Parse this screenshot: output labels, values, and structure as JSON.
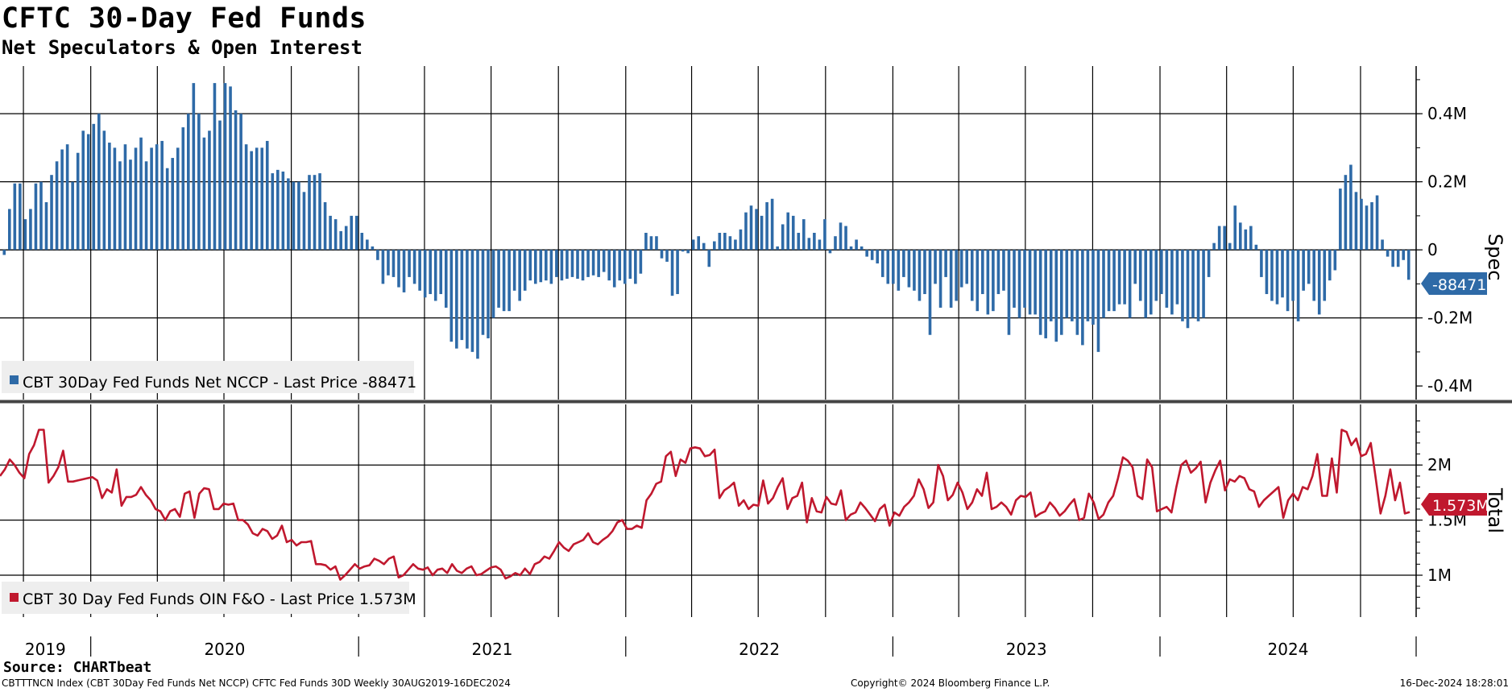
{
  "header": {
    "title": "CFTC 30-Day Fed Funds",
    "subtitle": "Net Speculators & Open Interest"
  },
  "footer": {
    "source": "Source: CHARTbeat",
    "index_line": "CBTTTNCN Index (CBT 30Day Fed Funds Net NCCP) CFTC Fed Funds 30D  Weekly 30AUG2019-16DEC2024",
    "copyright": "Copyright© 2024 Bloomberg Finance L.P.",
    "timestamp": "16-Dec-2024 18:28:01"
  },
  "colors": {
    "spec": "#2e6aa7",
    "total": "#c0182e",
    "grid": "#000000"
  },
  "chart_data": [
    {
      "type": "bar",
      "frequency": "weekly",
      "date_range": [
        "2019-08-30",
        "2024-12-16"
      ],
      "ylabel": "Spec",
      "yticks": [
        0.4,
        0.2,
        0,
        -0.2,
        -0.4
      ],
      "ytick_labels": [
        "0.4M",
        "0.2M",
        "0",
        "-0.2M",
        "-0.4M"
      ],
      "ylim": [
        -0.44,
        0.54
      ],
      "grid": true,
      "legend": "bottom-left",
      "series": [
        {
          "name": "CBT 30Day Fed Funds Net NCCP",
          "legend_label": "CBT 30Day Fed Funds Net NCCP - Last Price -88471",
          "last_tag": "-88471",
          "values": [
            -0.015,
            0.12,
            0.195,
            0.195,
            0.09,
            0.12,
            0.195,
            0.2,
            0.14,
            0.22,
            0.26,
            0.295,
            0.31,
            0.2,
            0.285,
            0.35,
            0.34,
            0.37,
            0.4,
            0.35,
            0.315,
            0.3,
            0.26,
            0.31,
            0.265,
            0.3,
            0.33,
            0.26,
            0.3,
            0.31,
            0.32,
            0.24,
            0.27,
            0.3,
            0.36,
            0.4,
            0.49,
            0.4,
            0.33,
            0.35,
            0.49,
            0.38,
            0.49,
            0.48,
            0.41,
            0.4,
            0.31,
            0.29,
            0.3,
            0.3,
            0.32,
            0.225,
            0.235,
            0.23,
            0.21,
            0.2,
            0.2,
            0.17,
            0.22,
            0.22,
            0.225,
            0.14,
            0.1,
            0.09,
            0.055,
            0.07,
            0.1,
            0.1,
            0.05,
            0.03,
            0.01,
            -0.03,
            -0.1,
            -0.075,
            -0.08,
            -0.11,
            -0.125,
            -0.08,
            -0.1,
            -0.12,
            -0.14,
            -0.13,
            -0.15,
            -0.13,
            -0.17,
            -0.27,
            -0.29,
            -0.265,
            -0.29,
            -0.3,
            -0.32,
            -0.25,
            -0.26,
            -0.2,
            -0.17,
            -0.18,
            -0.18,
            -0.12,
            -0.15,
            -0.12,
            -0.09,
            -0.1,
            -0.095,
            -0.09,
            -0.1,
            -0.08,
            -0.09,
            -0.085,
            -0.08,
            -0.085,
            -0.09,
            -0.08,
            -0.075,
            -0.08,
            -0.065,
            -0.09,
            -0.11,
            -0.09,
            -0.1,
            -0.085,
            -0.1,
            -0.07,
            0.05,
            0.04,
            0.04,
            -0.025,
            -0.035,
            -0.135,
            -0.13,
            -0.005,
            -0.01,
            0.03,
            0.04,
            0.02,
            -0.05,
            0.025,
            0.05,
            0.05,
            0.04,
            0.03,
            0.06,
            0.11,
            0.13,
            0.12,
            0.1,
            0.14,
            0.15,
            0.01,
            0.075,
            0.11,
            0.1,
            0.05,
            0.09,
            0.035,
            0.05,
            0.03,
            0.09,
            -0.01,
            0.04,
            0.08,
            0.07,
            0.01,
            0.03,
            0.01,
            -0.02,
            -0.03,
            -0.04,
            -0.08,
            -0.1,
            -0.1,
            -0.12,
            -0.08,
            -0.11,
            -0.12,
            -0.15,
            -0.13,
            -0.25,
            -0.1,
            -0.17,
            -0.08,
            -0.17,
            -0.15,
            -0.11,
            -0.1,
            -0.15,
            -0.18,
            -0.13,
            -0.19,
            -0.18,
            -0.13,
            -0.12,
            -0.25,
            -0.17,
            -0.2,
            -0.17,
            -0.19,
            -0.19,
            -0.25,
            -0.26,
            -0.21,
            -0.27,
            -0.25,
            -0.2,
            -0.21,
            -0.25,
            -0.28,
            -0.21,
            -0.22,
            -0.3,
            -0.2,
            -0.18,
            -0.18,
            -0.16,
            -0.16,
            -0.2,
            -0.1,
            -0.15,
            -0.2,
            -0.19,
            -0.15,
            -0.13,
            -0.17,
            -0.19,
            -0.16,
            -0.21,
            -0.23,
            -0.2,
            -0.21,
            -0.2,
            -0.08,
            0.02,
            0.07,
            0.07,
            0.02,
            0.13,
            0.08,
            0.06,
            0.07,
            0.015,
            -0.08,
            -0.13,
            -0.15,
            -0.16,
            -0.14,
            -0.18,
            -0.15,
            -0.21,
            -0.12,
            -0.1,
            -0.15,
            -0.19,
            -0.15,
            -0.09,
            -0.06,
            0.18,
            0.22,
            0.25,
            0.17,
            0.15,
            0.13,
            0.14,
            0.16,
            0.03,
            -0.02,
            -0.05,
            -0.05,
            -0.03,
            -0.088
          ]
        }
      ]
    },
    {
      "type": "line",
      "frequency": "weekly",
      "date_range": [
        "2019-08-30",
        "2024-12-16"
      ],
      "ylabel": "Total",
      "yticks": [
        2.0,
        1.5,
        1.0
      ],
      "ytick_labels": [
        "2M",
        "1.5M",
        "1M"
      ],
      "ylim": [
        0.62,
        2.55
      ],
      "grid": true,
      "legend": "bottom-left",
      "series": [
        {
          "name": "CBT 30 Day Fed Funds OIN F&O",
          "legend_label": "CBT 30 Day Fed Funds OIN F&O - Last Price 1.573M",
          "last_tag": "1.573M",
          "values": [
            1.9,
            1.96,
            2.05,
            2.0,
            1.93,
            1.88,
            2.1,
            2.18,
            2.32,
            2.32,
            1.84,
            1.9,
            1.98,
            2.13,
            1.85,
            1.85,
            1.86,
            1.87,
            1.88,
            1.89,
            1.86,
            1.7,
            1.78,
            1.75,
            1.96,
            1.63,
            1.71,
            1.71,
            1.73,
            1.8,
            1.73,
            1.68,
            1.6,
            1.58,
            1.5,
            1.58,
            1.6,
            1.53,
            1.74,
            1.76,
            1.52,
            1.74,
            1.79,
            1.78,
            1.6,
            1.6,
            1.65,
            1.64,
            1.65,
            1.5,
            1.5,
            1.46,
            1.38,
            1.36,
            1.42,
            1.4,
            1.33,
            1.36,
            1.45,
            1.3,
            1.32,
            1.27,
            1.3,
            1.3,
            1.31,
            1.1,
            1.1,
            1.09,
            1.05,
            1.08,
            0.96,
            1.0,
            1.05,
            1.1,
            1.06,
            1.08,
            1.09,
            1.15,
            1.13,
            1.1,
            1.15,
            1.17,
            0.98,
            1.0,
            1.05,
            1.1,
            1.06,
            1.05,
            1.07,
            1.0,
            1.05,
            1.06,
            1.02,
            1.1,
            1.04,
            1.02,
            1.06,
            1.08,
            1.0,
            1.01,
            1.04,
            1.07,
            1.08,
            1.05,
            0.97,
            0.99,
            1.02,
            1.0,
            1.06,
            1.01,
            1.1,
            1.12,
            1.17,
            1.15,
            1.22,
            1.3,
            1.25,
            1.22,
            1.28,
            1.3,
            1.32,
            1.38,
            1.3,
            1.28,
            1.32,
            1.35,
            1.4,
            1.48,
            1.5,
            1.42,
            1.42,
            1.45,
            1.43,
            1.68,
            1.74,
            1.83,
            1.85,
            2.08,
            2.12,
            1.9,
            2.05,
            2.02,
            2.15,
            2.16,
            2.15,
            2.08,
            2.09,
            2.14,
            1.7,
            1.77,
            1.8,
            1.84,
            1.63,
            1.68,
            1.6,
            1.64,
            1.63,
            1.86,
            1.65,
            1.7,
            1.8,
            1.88,
            1.6,
            1.7,
            1.72,
            1.84,
            1.48,
            1.7,
            1.58,
            1.57,
            1.71,
            1.65,
            1.64,
            1.77,
            1.5,
            1.55,
            1.57,
            1.66,
            1.61,
            1.55,
            1.49,
            1.6,
            1.64,
            1.45,
            1.57,
            1.54,
            1.62,
            1.66,
            1.72,
            1.87,
            1.78,
            1.61,
            1.66,
            2.0,
            1.9,
            1.68,
            1.73,
            1.84,
            1.75,
            1.6,
            1.66,
            1.78,
            1.72,
            1.93,
            1.6,
            1.62,
            1.66,
            1.62,
            1.55,
            1.68,
            1.72,
            1.71,
            1.75,
            1.53,
            1.56,
            1.58,
            1.66,
            1.61,
            1.54,
            1.58,
            1.64,
            1.69,
            1.5,
            1.52,
            1.74,
            1.66,
            1.51,
            1.55,
            1.66,
            1.72,
            1.88,
            2.07,
            2.04,
            1.98,
            1.72,
            1.69,
            2.05,
            1.98,
            1.58,
            1.6,
            1.62,
            1.57,
            1.8,
            2.0,
            2.04,
            1.93,
            1.97,
            2.03,
            1.66,
            1.84,
            1.95,
            2.04,
            1.77,
            1.87,
            1.85,
            1.9,
            1.88,
            1.78,
            1.76,
            1.62,
            1.68,
            1.72,
            1.76,
            1.8,
            1.52,
            1.68,
            1.74,
            1.68,
            1.8,
            1.78,
            1.9,
            2.1,
            1.72,
            1.72,
            2.06,
            1.75,
            2.32,
            2.3,
            2.18,
            2.24,
            2.08,
            2.1,
            2.2,
            1.88,
            1.56,
            1.72,
            1.96,
            1.68,
            1.84,
            1.56,
            1.573
          ]
        }
      ]
    }
  ],
  "x_axis": {
    "year_labels": [
      "2019",
      "2020",
      "2021",
      "2022",
      "2023",
      "2024"
    ]
  }
}
